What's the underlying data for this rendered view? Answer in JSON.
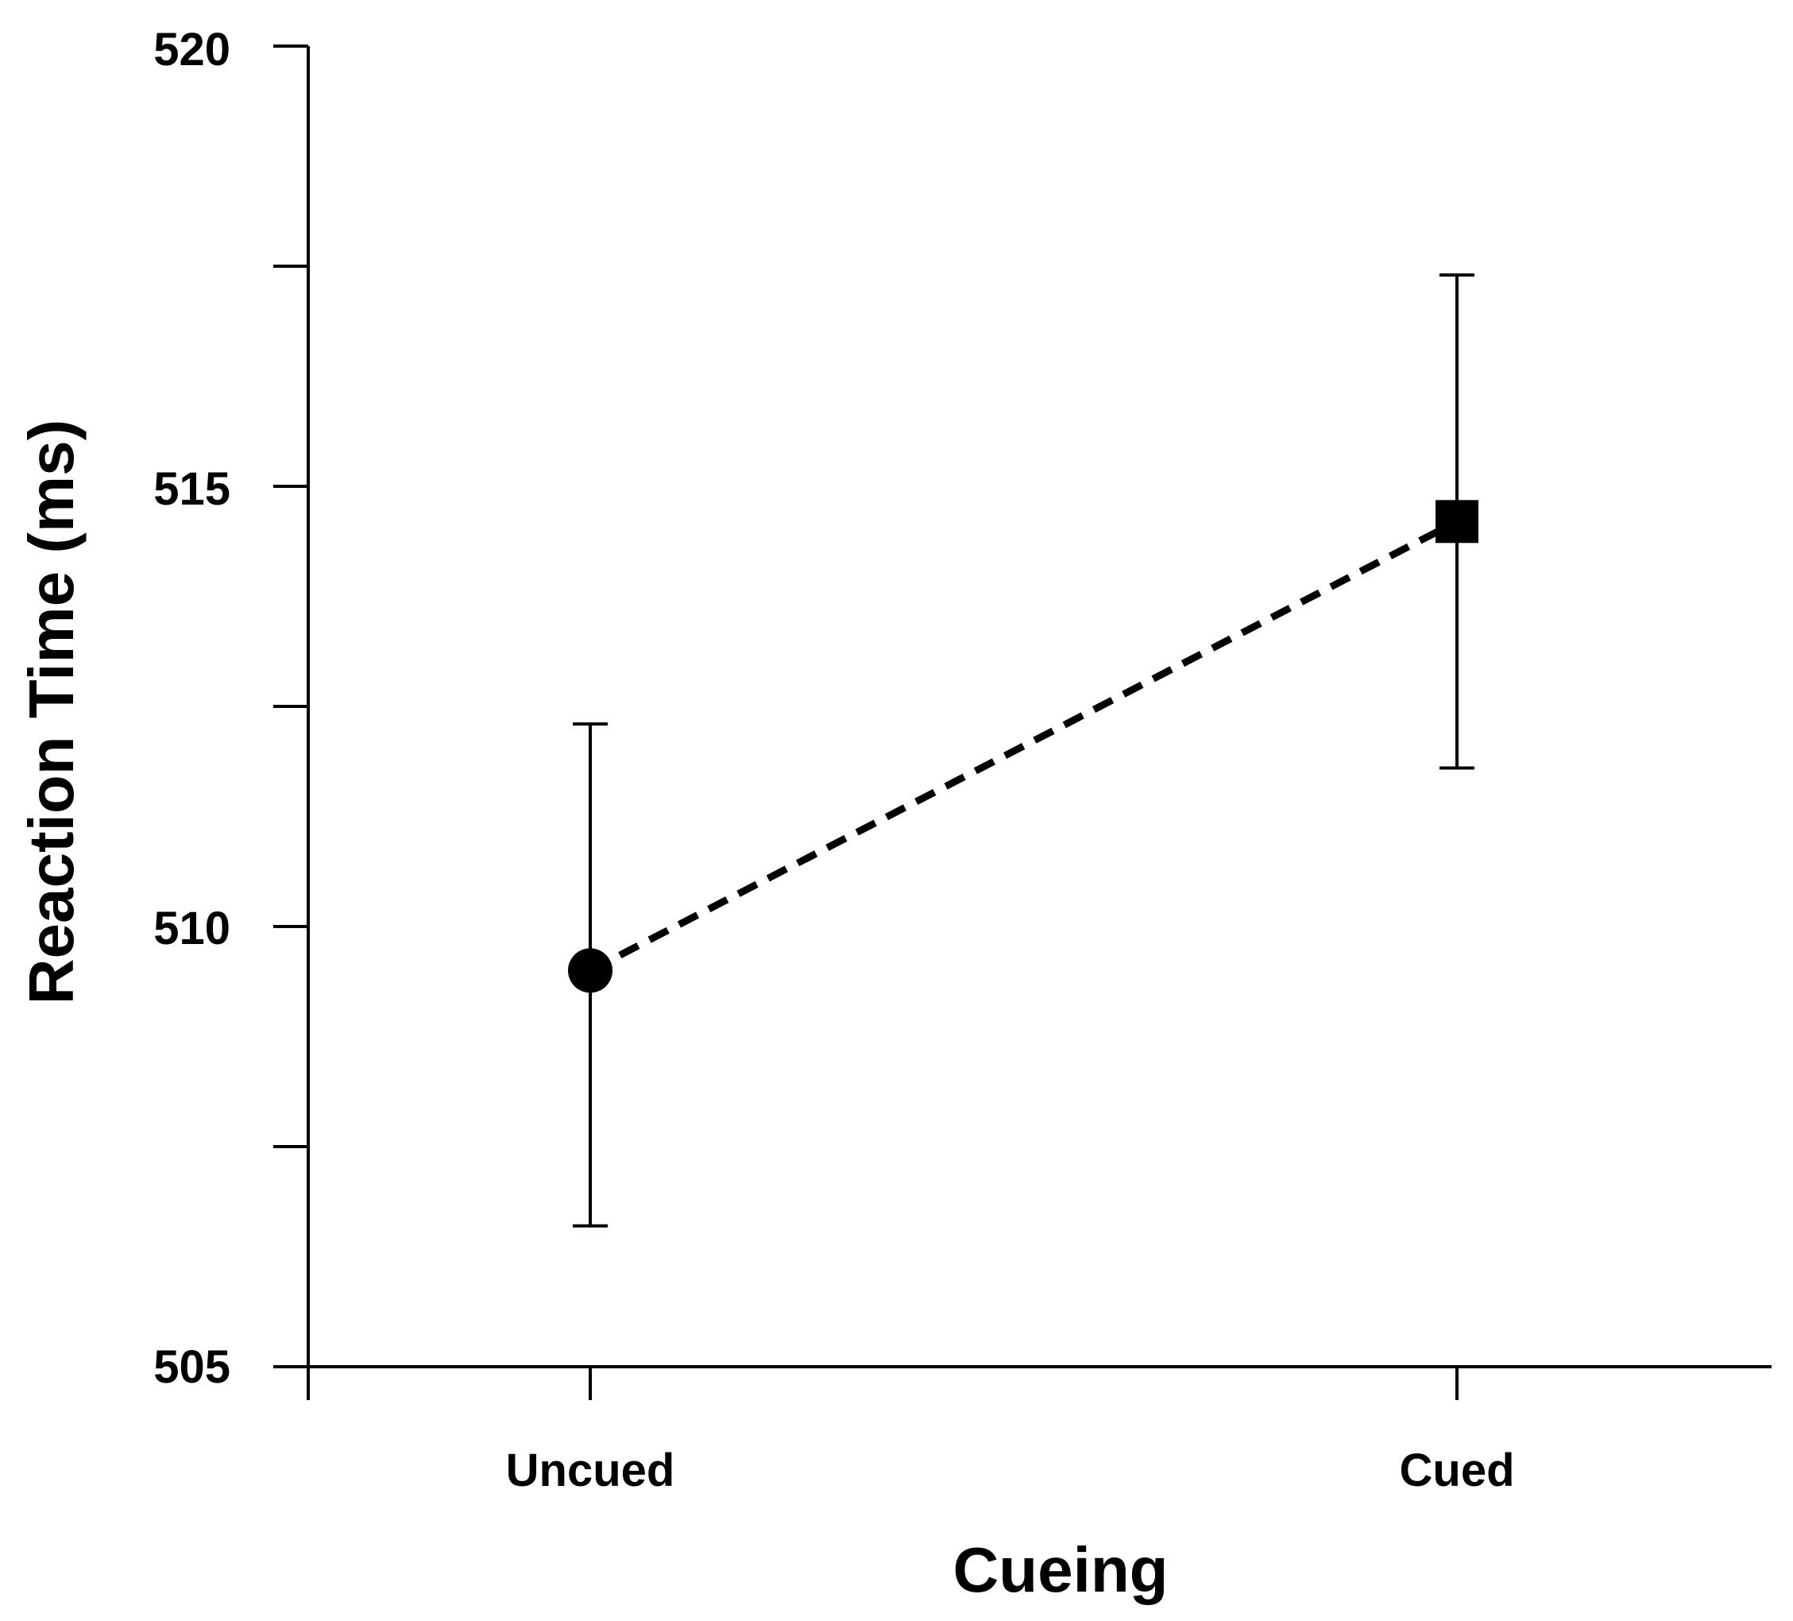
{
  "chart_data": {
    "type": "line",
    "title": "",
    "xlabel": "Cueing",
    "ylabel": "Reaction Time (ms)",
    "ylim": [
      505,
      520
    ],
    "y_major_ticks": [
      505,
      510,
      515,
      520
    ],
    "y_minor_ticks": [
      507.5,
      512.5,
      517.5
    ],
    "categories": [
      "Uncued",
      "Cued"
    ],
    "series": [
      {
        "name": "Reaction Time",
        "values": [
          509.5,
          514.6
        ],
        "error_upper": [
          512.3,
          517.4
        ],
        "error_lower": [
          506.6,
          511.8
        ],
        "markers": [
          "circle",
          "square"
        ],
        "line_style": "dashed"
      }
    ],
    "grid": false,
    "legend": "none"
  },
  "colors": {
    "ink": "#000000",
    "background": "#ffffff"
  }
}
